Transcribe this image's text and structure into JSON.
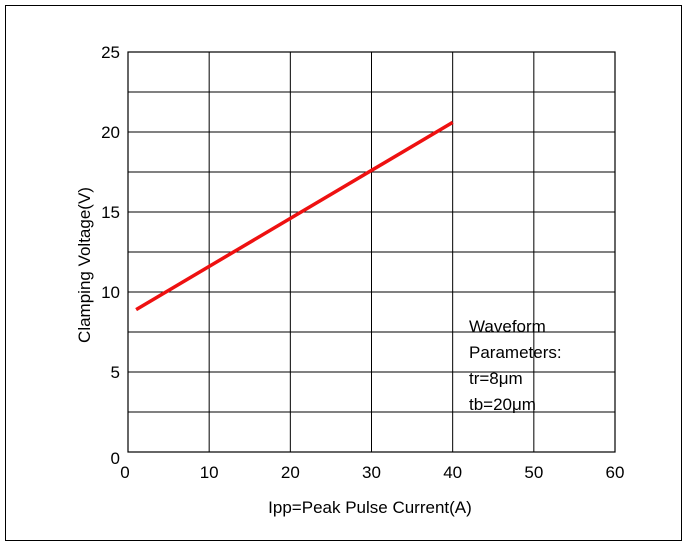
{
  "chart_data": {
    "type": "line",
    "xlabel": "Ipp=Peak Pulse Current(A)",
    "ylabel": "Clamping Voltage(V)",
    "xlim": [
      0,
      60
    ],
    "ylim": [
      0,
      25
    ],
    "x_ticks": [
      0,
      10,
      20,
      30,
      40,
      50,
      60
    ],
    "y_ticks": [
      0,
      5,
      10,
      15,
      20,
      25
    ],
    "x_tick_labels": [
      "0",
      "10",
      "20",
      "30",
      "40",
      "50",
      "60"
    ],
    "y_tick_labels": [
      "0",
      "5",
      "10",
      "15",
      "20",
      "25"
    ],
    "grid": true,
    "grid_x_step": 10,
    "grid_y_step": 2.5,
    "series": [
      {
        "color": "#ee1111",
        "x": [
          1,
          40
        ],
        "y": [
          8.9,
          20.6
        ]
      }
    ],
    "annotations": [
      "Waveform",
      "Parameters:",
      "tr=8μm",
      "tb=20μm"
    ]
  }
}
